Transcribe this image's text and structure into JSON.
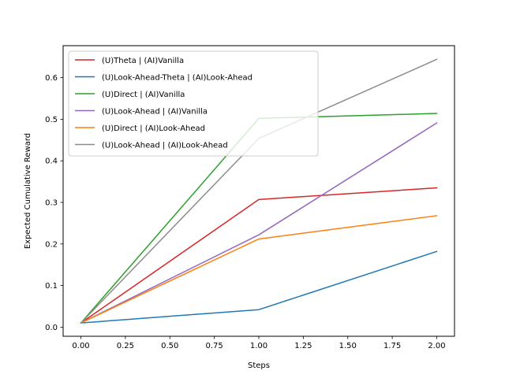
{
  "chart_data": {
    "type": "line",
    "title": "",
    "xlabel": "Steps",
    "ylabel": "Expected Cumulative Reward",
    "x": [
      0,
      1,
      2
    ],
    "xlim": [
      -0.1,
      2.1
    ],
    "ylim": [
      -0.022,
      0.677
    ],
    "xticks": [
      "0.00",
      "0.25",
      "0.50",
      "0.75",
      "1.00",
      "1.25",
      "1.50",
      "1.75",
      "2.00"
    ],
    "yticks": [
      "0.0",
      "0.1",
      "0.2",
      "0.3",
      "0.4",
      "0.5",
      "0.6"
    ],
    "grid": false,
    "legend_position": "upper-left",
    "series": [
      {
        "name": "(U)Theta | (AI)Vanilla",
        "color": "#d62728",
        "values": [
          0.01,
          0.307,
          0.335
        ]
      },
      {
        "name": "(U)Look-Ahead-Theta | (AI)Look-Ahead",
        "color": "#1f77b4",
        "values": [
          0.01,
          0.042,
          0.182
        ]
      },
      {
        "name": "(U)Direct | (AI)Vanilla",
        "color": "#2ca02c",
        "values": [
          0.01,
          0.502,
          0.514
        ]
      },
      {
        "name": "(U)Look-Ahead | (AI)Vanilla",
        "color": "#9467bd",
        "values": [
          0.01,
          0.222,
          0.491
        ]
      },
      {
        "name": "(U)Direct | (AI)Look-Ahead",
        "color": "#ff7f0e",
        "values": [
          0.01,
          0.212,
          0.268
        ]
      },
      {
        "name": "(U)Look-Ahead | (AI)Look-Ahead",
        "color": "#8c8c8c",
        "values": [
          0.01,
          0.454,
          0.644
        ]
      }
    ]
  }
}
